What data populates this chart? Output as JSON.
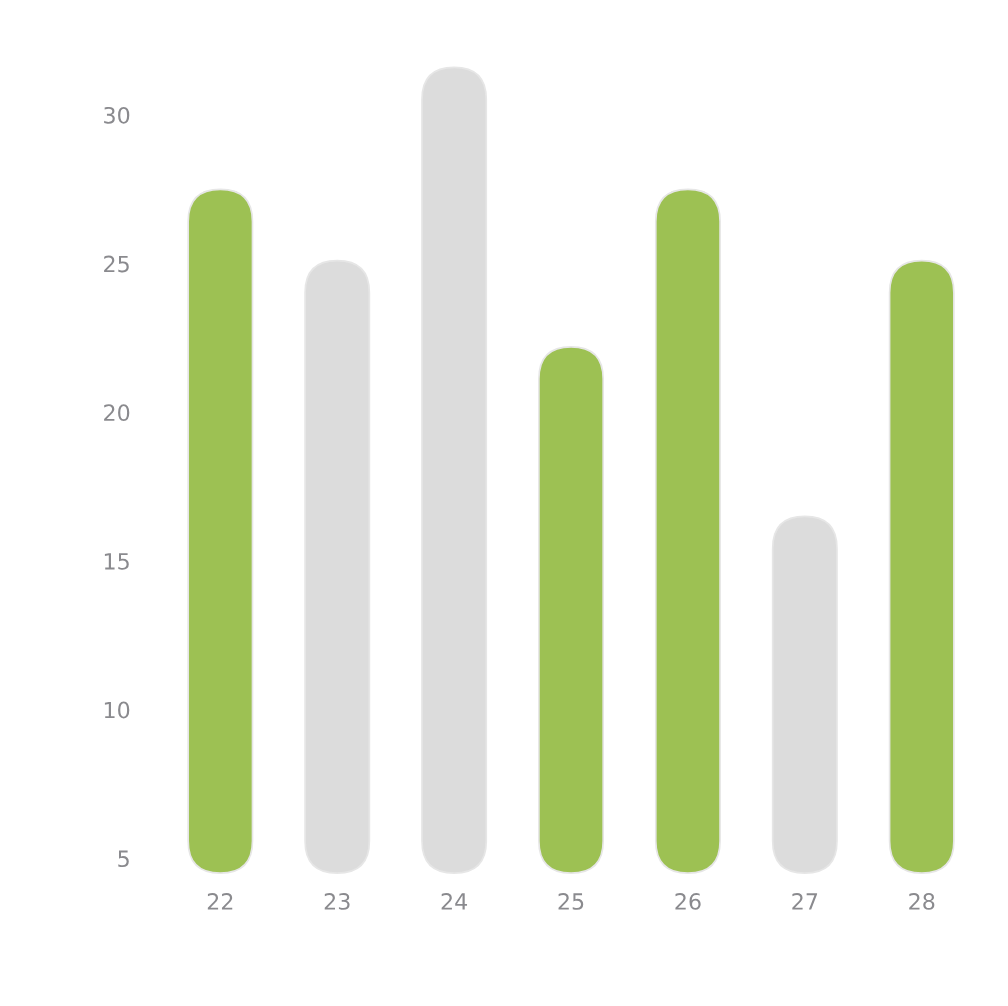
{
  "chart_data": {
    "type": "bar",
    "categories": [
      "22",
      "23",
      "24",
      "25",
      "26",
      "27",
      "28"
    ],
    "base": [
      4.5,
      4.5,
      4.5,
      4.5,
      4.5,
      4.5,
      4.5
    ],
    "values": [
      23.0,
      20.6,
      27.1,
      17.7,
      23.0,
      12.0,
      20.6
    ],
    "colors": [
      "#9dc153",
      "#dcdcdc",
      "#dcdcdc",
      "#9dc153",
      "#9dc153",
      "#dcdcdc",
      "#9dc153"
    ],
    "ylim": [
      4.5,
      31.6
    ],
    "yticks": [
      5,
      10,
      15,
      20,
      25,
      30
    ],
    "grid": false,
    "legend": false
  }
}
